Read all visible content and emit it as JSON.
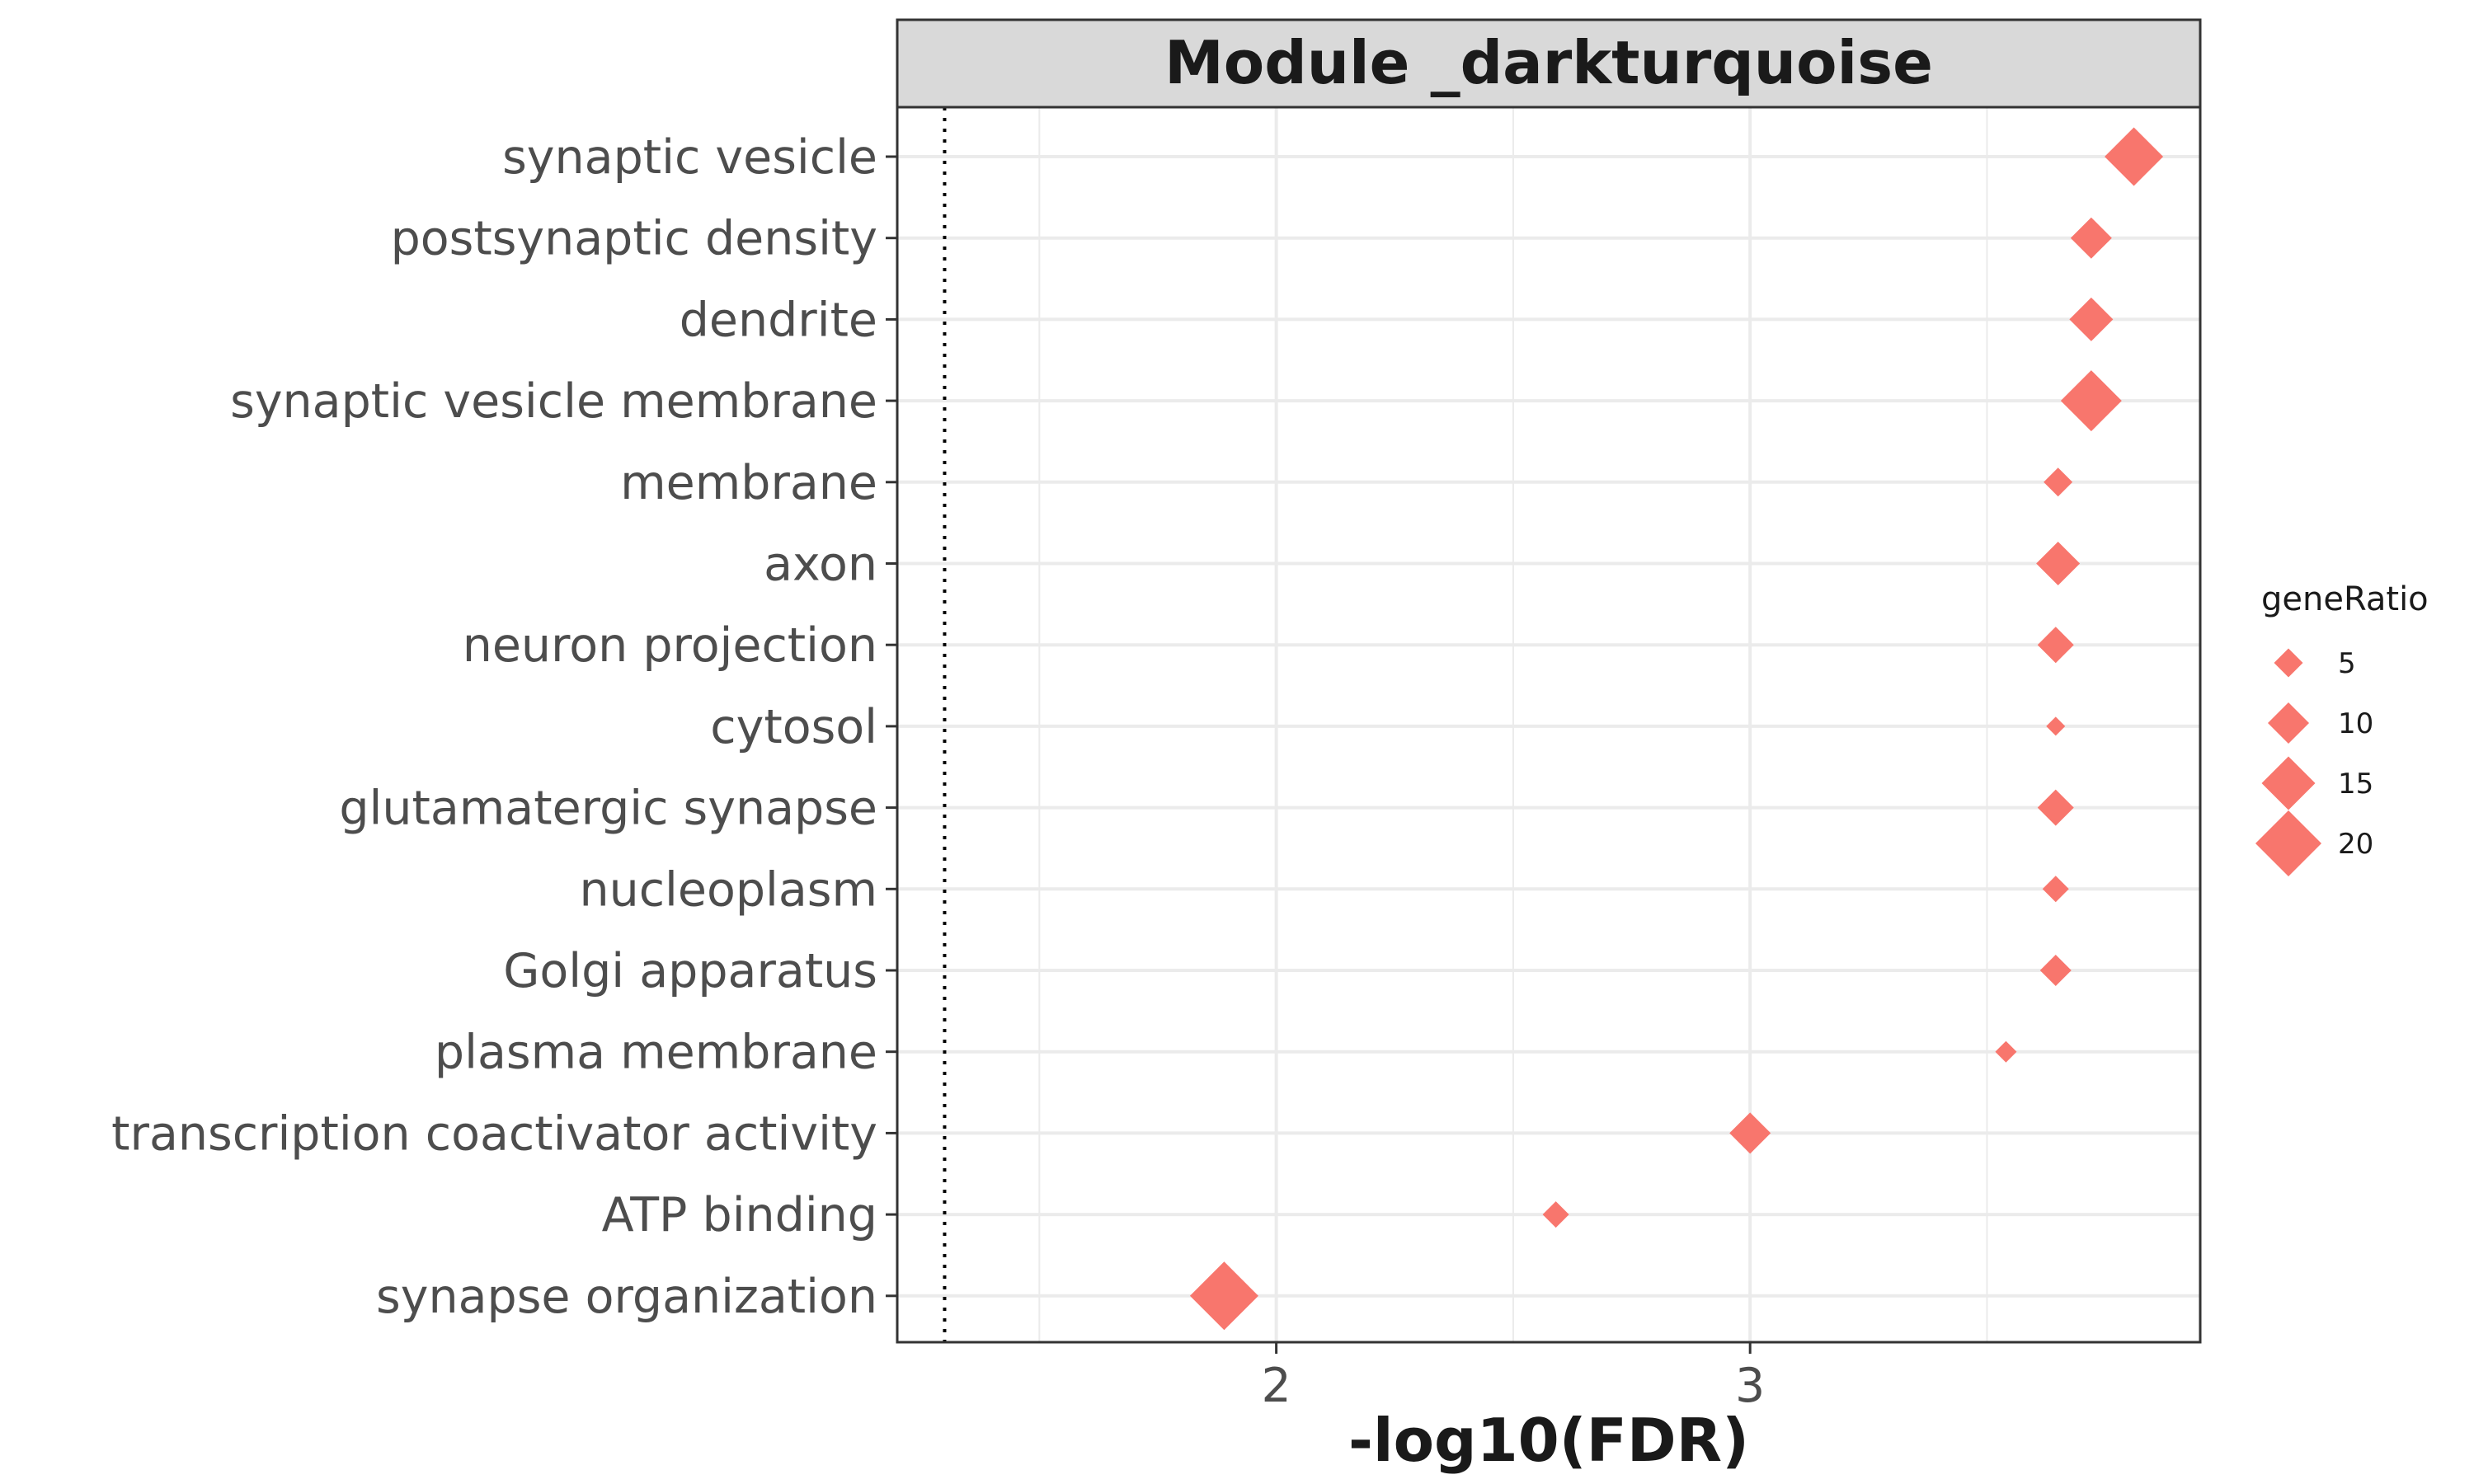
{
  "chart_data": {
    "type": "scatter",
    "title": "Module _darkturquoise",
    "xlabel": "-log10(FDR)",
    "ylabel": "",
    "xlim": [
      1.2,
      3.95
    ],
    "xticks": [
      2,
      3
    ],
    "grid": true,
    "reference_line": {
      "x": 1.3,
      "style": "dotted"
    },
    "marker": "diamond",
    "color": "#F8766D",
    "size_legend": {
      "title": "geneRatio",
      "placement": "right",
      "entries": [
        {
          "label": "5",
          "value": 5
        },
        {
          "label": "10",
          "value": 10
        },
        {
          "label": "15",
          "value": 15
        },
        {
          "label": "20",
          "value": 20
        }
      ]
    },
    "points": [
      {
        "term": "synaptic vesicle",
        "x": 3.81,
        "geneRatio": 17
      },
      {
        "term": "postsynaptic density",
        "x": 3.72,
        "geneRatio": 10
      },
      {
        "term": "dendrite",
        "x": 3.72,
        "geneRatio": 11
      },
      {
        "term": "synaptic vesicle membrane",
        "x": 3.72,
        "geneRatio": 18
      },
      {
        "term": "membrane",
        "x": 3.65,
        "geneRatio": 5
      },
      {
        "term": "axon",
        "x": 3.65,
        "geneRatio": 11
      },
      {
        "term": "neuron projection",
        "x": 3.645,
        "geneRatio": 8
      },
      {
        "term": "cytosol",
        "x": 3.645,
        "geneRatio": 1
      },
      {
        "term": "glutamatergic synapse",
        "x": 3.645,
        "geneRatio": 8
      },
      {
        "term": "nucleoplasm",
        "x": 3.645,
        "geneRatio": 4
      },
      {
        "term": "Golgi apparatus",
        "x": 3.645,
        "geneRatio": 6
      },
      {
        "term": "plasma membrane",
        "x": 3.54,
        "geneRatio": 2
      },
      {
        "term": "transcription coactivator activity",
        "x": 3.0,
        "geneRatio": 10
      },
      {
        "term": "ATP binding",
        "x": 2.59,
        "geneRatio": 4
      },
      {
        "term": "synapse organization",
        "x": 1.89,
        "geneRatio": 21
      }
    ]
  }
}
